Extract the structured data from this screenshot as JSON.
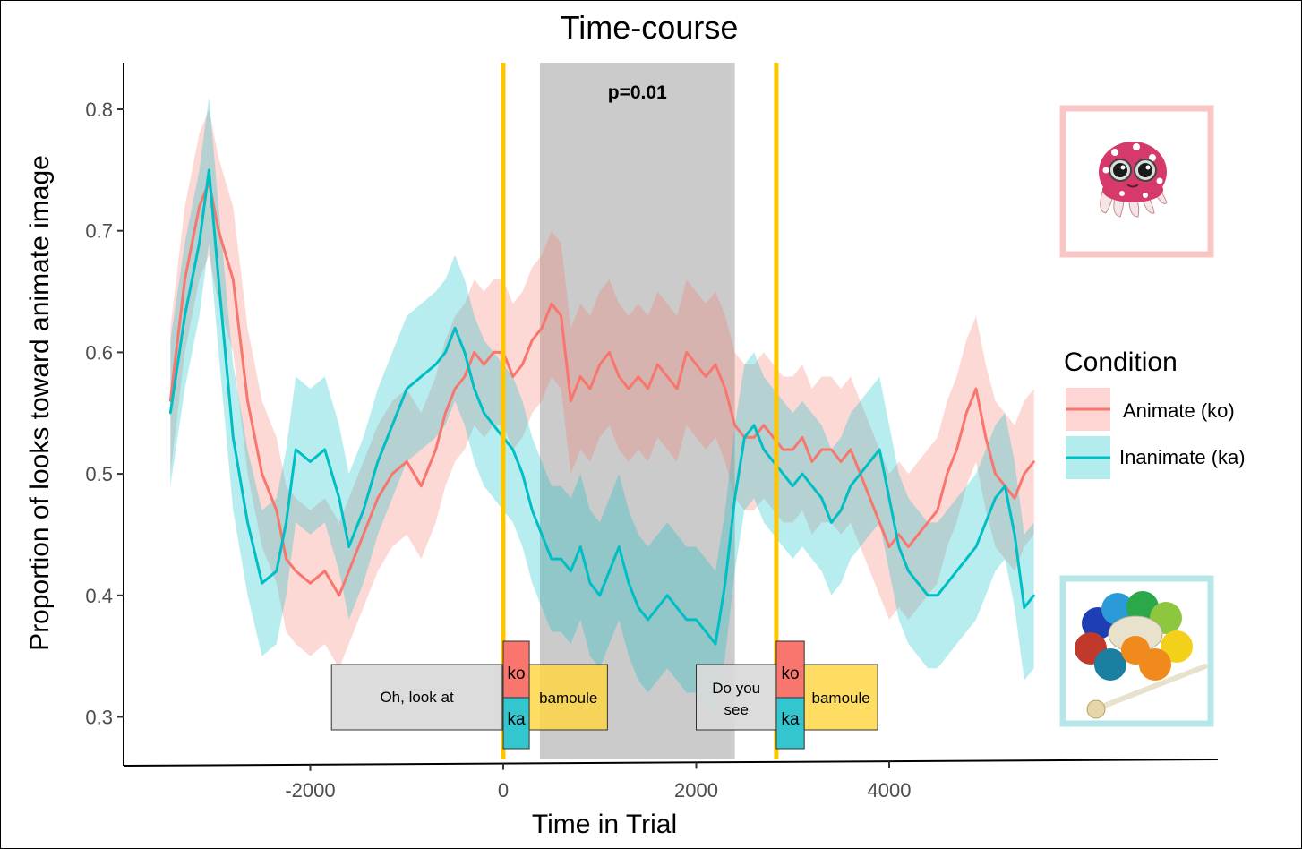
{
  "chart_data": {
    "type": "line",
    "title": "Time-course",
    "xlabel": "Time in Trial",
    "ylabel": "Proportion of looks toward animate image",
    "xlim": [
      -3600,
      5700
    ],
    "ylim": [
      0.26,
      0.84
    ],
    "xticks": [
      -2000,
      0,
      2000,
      4000
    ],
    "yticks": [
      0.3,
      0.4,
      0.5,
      0.6,
      0.7,
      0.8
    ],
    "xtick_labels": [
      "-2000",
      "0",
      "2000",
      "4000"
    ],
    "ytick_labels": [
      "0.3",
      "0.4",
      "0.5",
      "0.6",
      "0.7",
      "0.8"
    ],
    "grid": false,
    "legend": {
      "title": "Condition",
      "placement": "right"
    },
    "series": [
      {
        "name": "Animate (ko)",
        "color": "#F8766D",
        "ribbon_color": "#F8766D",
        "x": [
          -3450,
          -3300,
          -3150,
          -3050,
          -2950,
          -2800,
          -2650,
          -2500,
          -2350,
          -2250,
          -2150,
          -2000,
          -1850,
          -1700,
          -1600,
          -1450,
          -1300,
          -1150,
          -1000,
          -850,
          -700,
          -600,
          -500,
          -400,
          -300,
          -200,
          -100,
          0,
          100,
          200,
          300,
          400,
          500,
          600,
          700,
          800,
          900,
          1000,
          1100,
          1200,
          1300,
          1400,
          1500,
          1600,
          1700,
          1800,
          1900,
          2000,
          2100,
          2200,
          2300,
          2400,
          2500,
          2600,
          2700,
          2800,
          2900,
          3000,
          3100,
          3200,
          3300,
          3400,
          3500,
          3600,
          3700,
          3800,
          3900,
          4000,
          4100,
          4200,
          4300,
          4400,
          4500,
          4600,
          4700,
          4800,
          4900,
          5000,
          5100,
          5200,
          5300,
          5400,
          5500
        ],
        "y": [
          0.56,
          0.66,
          0.72,
          0.74,
          0.7,
          0.66,
          0.56,
          0.5,
          0.47,
          0.43,
          0.42,
          0.41,
          0.42,
          0.4,
          0.42,
          0.45,
          0.48,
          0.5,
          0.51,
          0.49,
          0.52,
          0.55,
          0.57,
          0.58,
          0.6,
          0.59,
          0.6,
          0.6,
          0.58,
          0.59,
          0.61,
          0.62,
          0.64,
          0.63,
          0.56,
          0.58,
          0.57,
          0.59,
          0.6,
          0.58,
          0.57,
          0.58,
          0.57,
          0.59,
          0.58,
          0.57,
          0.6,
          0.59,
          0.58,
          0.59,
          0.57,
          0.54,
          0.53,
          0.53,
          0.54,
          0.53,
          0.52,
          0.52,
          0.53,
          0.51,
          0.52,
          0.52,
          0.51,
          0.52,
          0.5,
          0.48,
          0.46,
          0.44,
          0.45,
          0.44,
          0.45,
          0.46,
          0.47,
          0.5,
          0.52,
          0.55,
          0.57,
          0.53,
          0.5,
          0.49,
          0.48,
          0.5,
          0.51
        ],
        "ci": 0.06
      },
      {
        "name": "Inanimate (ka)",
        "color": "#00BFC4",
        "ribbon_color": "#00BFC4",
        "x": [
          -3450,
          -3300,
          -3150,
          -3050,
          -2950,
          -2800,
          -2650,
          -2500,
          -2350,
          -2250,
          -2150,
          -2000,
          -1850,
          -1700,
          -1600,
          -1450,
          -1300,
          -1150,
          -1000,
          -850,
          -700,
          -600,
          -500,
          -400,
          -300,
          -200,
          -100,
          0,
          100,
          200,
          300,
          400,
          500,
          600,
          700,
          800,
          900,
          1000,
          1100,
          1200,
          1300,
          1400,
          1500,
          1600,
          1700,
          1800,
          1900,
          2000,
          2100,
          2200,
          2300,
          2400,
          2500,
          2600,
          2700,
          2800,
          2900,
          3000,
          3100,
          3200,
          3300,
          3400,
          3500,
          3600,
          3700,
          3800,
          3900,
          4000,
          4100,
          4200,
          4300,
          4400,
          4500,
          4600,
          4700,
          4800,
          4900,
          5000,
          5100,
          5200,
          5300,
          5400,
          5500
        ],
        "y": [
          0.55,
          0.63,
          0.69,
          0.75,
          0.66,
          0.53,
          0.46,
          0.41,
          0.42,
          0.46,
          0.52,
          0.51,
          0.52,
          0.48,
          0.44,
          0.47,
          0.51,
          0.54,
          0.57,
          0.58,
          0.59,
          0.6,
          0.62,
          0.6,
          0.57,
          0.55,
          0.54,
          0.53,
          0.52,
          0.5,
          0.47,
          0.45,
          0.43,
          0.43,
          0.42,
          0.44,
          0.41,
          0.4,
          0.42,
          0.44,
          0.41,
          0.39,
          0.38,
          0.39,
          0.4,
          0.39,
          0.38,
          0.38,
          0.37,
          0.36,
          0.41,
          0.48,
          0.53,
          0.54,
          0.52,
          0.51,
          0.5,
          0.49,
          0.5,
          0.49,
          0.48,
          0.46,
          0.47,
          0.49,
          0.5,
          0.51,
          0.52,
          0.48,
          0.44,
          0.42,
          0.41,
          0.4,
          0.4,
          0.41,
          0.42,
          0.43,
          0.44,
          0.46,
          0.48,
          0.49,
          0.45,
          0.39,
          0.4
        ],
        "ci": 0.06
      }
    ],
    "highlight_window": {
      "x": [
        380,
        2400
      ],
      "label": "p=0.01"
    },
    "vertical_lines": [
      0,
      2830
    ],
    "sentence_boxes": [
      {
        "text": "Oh, look at",
        "x": [
          -1780,
          -10
        ]
      },
      {
        "text": "Do you see",
        "x": [
          2000,
          2830
        ]
      }
    ],
    "word_boxes": [
      {
        "animate": "ko",
        "inanimate": "ka",
        "noun": "bamoule",
        "x": [
          0,
          270
        ],
        "noun_x": [
          270,
          1080
        ]
      },
      {
        "animate": "ko",
        "inanimate": "ka",
        "noun": "bamoule",
        "x": [
          2830,
          3120
        ],
        "noun_x": [
          3120,
          3880
        ]
      }
    ]
  },
  "colors": {
    "animate": "#F8766D",
    "inanimate": "#00BFC4",
    "ko_box": "#F8766D",
    "ka_box": "#34C6CF",
    "noun_box": "#FFD640",
    "sentence_box": "#D9D9D9",
    "window": "#BEBEBE",
    "onset_line": "#FFC600",
    "animate_frame": "#F9C6C6",
    "inanimate_frame": "#B6E6E8"
  },
  "images": {
    "animate": "octopus-plush-toy-icon",
    "inanimate": "handbell-set-icon"
  }
}
